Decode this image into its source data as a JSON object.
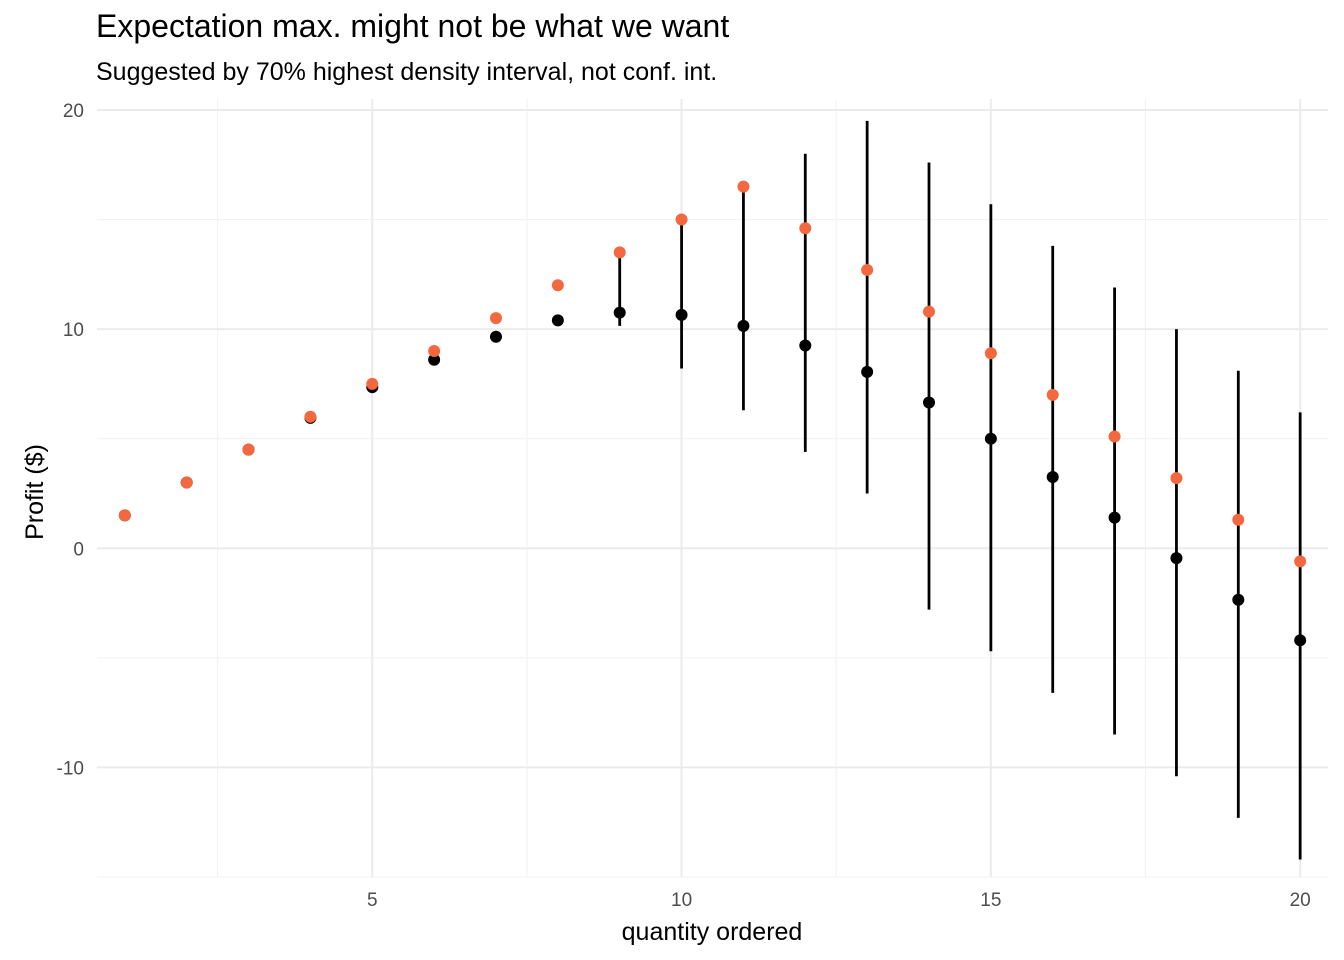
{
  "chart_data": {
    "type": "scatter",
    "title": "Expectation max. might not be what we want",
    "subtitle": "Suggested by 70% highest density interval, not conf. int.",
    "xlabel": "quantity ordered",
    "ylabel": "Profit ($)",
    "xlim": [
      0.55,
      20.45
    ],
    "ylim": [
      -15.0,
      20.5
    ],
    "x_ticks": [
      5,
      10,
      15,
      20
    ],
    "x_tick_labels": [
      "5",
      "10",
      "15",
      "20"
    ],
    "x_minor_ticks": [
      2.5,
      7.5,
      12.5,
      17.5
    ],
    "y_ticks": [
      -10,
      0,
      10,
      20
    ],
    "y_tick_labels": [
      "-10",
      "0",
      "10",
      "20"
    ],
    "y_minor_ticks": [
      -15,
      -5,
      5,
      15
    ],
    "grid": true,
    "legend": "none",
    "colors": {
      "interval": "#000000",
      "center_point": "#000000",
      "expected_point": "#f4683f",
      "grid_major": "#ebebeb",
      "grid_minor": "#f2f2f2"
    },
    "series": [
      {
        "x": [
          1,
          2,
          3,
          4,
          5,
          6,
          7,
          8,
          9,
          10,
          11,
          12,
          13,
          14,
          15,
          16,
          17,
          18,
          19,
          20
        ],
        "y": [
          1.5,
          3.0,
          4.5,
          5.95,
          7.35,
          8.6,
          9.65,
          10.4,
          10.75,
          10.65,
          10.15,
          9.25,
          8.05,
          6.65,
          5.0,
          3.25,
          1.4,
          -0.45,
          -2.35,
          -4.2
        ],
        "ymin": [
          null,
          null,
          null,
          null,
          null,
          null,
          null,
          null,
          10.15,
          8.2,
          6.3,
          4.4,
          2.5,
          -2.8,
          -4.7,
          -6.6,
          -8.5,
          -10.4,
          -12.3,
          -14.2
        ],
        "ymax": [
          null,
          null,
          null,
          null,
          null,
          null,
          null,
          null,
          13.4,
          15.0,
          16.5,
          18.0,
          19.5,
          17.6,
          15.7,
          13.8,
          11.9,
          10.0,
          8.1,
          6.2
        ]
      },
      {
        "x": [
          1,
          2,
          3,
          4,
          5,
          6,
          7,
          8,
          9,
          10,
          11,
          12,
          13,
          14,
          15,
          16,
          17,
          18,
          19,
          20
        ],
        "y": [
          1.5,
          3.0,
          4.5,
          6.0,
          7.5,
          9.0,
          10.5,
          12.0,
          13.5,
          15.0,
          16.5,
          14.6,
          12.7,
          10.8,
          8.9,
          7.0,
          5.1,
          3.2,
          1.3,
          -0.6
        ]
      }
    ]
  }
}
